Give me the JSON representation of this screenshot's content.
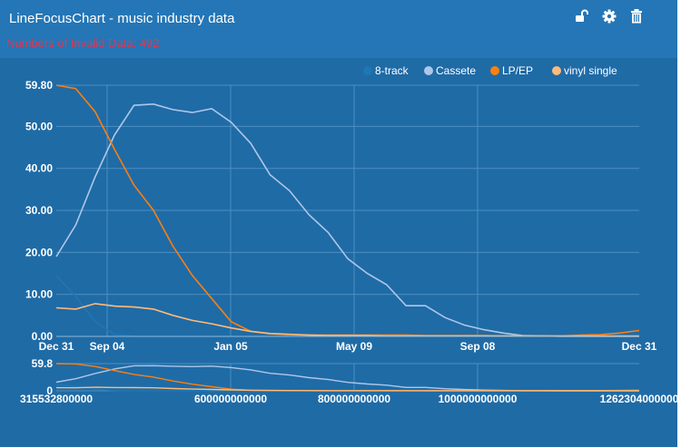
{
  "header": {
    "title": "LineFocusChart - music industry data",
    "invalid_text": "Numbers of Invalid Data: 492"
  },
  "toolbar": {
    "icons": [
      "unlock-icon",
      "gear-icon",
      "trash-icon"
    ]
  },
  "colors": {
    "background": "#1f6ba6",
    "header": "#2476b6",
    "invalid_text": "#e8334d",
    "grid": "#4b8fc2"
  },
  "chart_data": {
    "type": "line",
    "title": "",
    "xlabel": "",
    "ylabel": "",
    "ylim": [
      0,
      59.8
    ],
    "grid": true,
    "legend_position": "top-right",
    "main_x_ticks": [
      "Dec 31",
      "Sep 04",
      "Jan 05",
      "May 09",
      "Sep 08",
      "Dec 31"
    ],
    "main_y_ticks": [
      "0.00",
      "10.00",
      "20.00",
      "30.00",
      "40.00",
      "50.00",
      "59.80"
    ],
    "focus_x_ticks": [
      "315532800000",
      "600000000000",
      "800000000000",
      "1000000000000",
      "1262304000000"
    ],
    "focus_y_ticks": [
      "0",
      "59.8"
    ],
    "series": [
      {
        "name": "8-track",
        "color": "#1f77b4",
        "values": [
          14.5,
          9.5,
          3.5,
          0.5,
          0,
          0,
          0,
          0,
          0,
          0,
          0,
          0,
          0,
          0,
          0,
          0,
          0,
          0,
          0,
          0,
          0,
          0,
          0,
          0,
          0,
          0,
          0,
          0,
          0,
          0,
          0
        ]
      },
      {
        "name": "Cassete",
        "color": "#aec7e8",
        "values": [
          19,
          26.5,
          38,
          48,
          55,
          55.3,
          54,
          53.3,
          54.2,
          51,
          46,
          38.5,
          34.7,
          29,
          24.7,
          18.5,
          15,
          12.3,
          7.3,
          7.3,
          4.5,
          2.7,
          1.6,
          0.8,
          0.2,
          0.1,
          0,
          0,
          0,
          0,
          0
        ]
      },
      {
        "name": "LP/EP",
        "color": "#ff7f0e",
        "values": [
          59.8,
          59,
          53.5,
          44.5,
          36,
          30,
          21.5,
          14.5,
          9,
          3.5,
          1.2,
          0.6,
          0.4,
          0.3,
          0.3,
          0.3,
          0.3,
          0.3,
          0.3,
          0.2,
          0.2,
          0.2,
          0.2,
          0.1,
          0.1,
          0.1,
          0.1,
          0.3,
          0.4,
          0.8,
          1.4
        ]
      },
      {
        "name": "vinyl single",
        "color": "#ffbb78",
        "values": [
          6.8,
          6.5,
          7.8,
          7.2,
          7,
          6.5,
          5,
          3.8,
          3,
          2,
          1.2,
          0.7,
          0.5,
          0.3,
          0.2,
          0.2,
          0.2,
          0.1,
          0.1,
          0.1,
          0.1,
          0.1,
          0.1,
          0.1,
          0.1,
          0.1,
          0.1,
          0.1,
          0.1,
          0.1,
          0.1
        ]
      }
    ]
  }
}
